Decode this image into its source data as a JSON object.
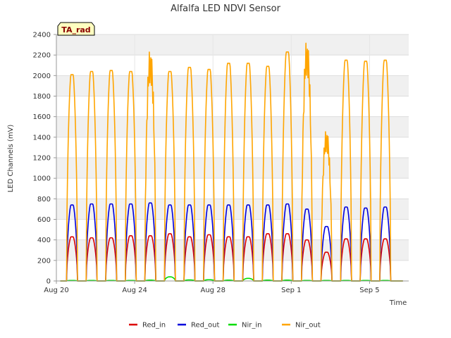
{
  "chart_data": {
    "type": "line",
    "title": "Alfalfa LED NDVI Sensor",
    "xlabel": "Time",
    "ylabel": "LED Channels (mV)",
    "station_badge": "TA_rad",
    "ylim": [
      0,
      2400
    ],
    "yticks": [
      0,
      200,
      400,
      600,
      800,
      1000,
      1200,
      1400,
      1600,
      1800,
      2000,
      2200,
      2400
    ],
    "xlim_day": [
      0,
      18
    ],
    "xticks": [
      {
        "day": 0,
        "label": "Aug 20"
      },
      {
        "day": 4,
        "label": "Aug 24"
      },
      {
        "day": 8,
        "label": "Aug 28"
      },
      {
        "day": 12,
        "label": "Sep 1"
      },
      {
        "day": 16,
        "label": "Sep 5"
      }
    ],
    "day_centers": [
      0.8,
      1.8,
      2.8,
      3.8,
      4.8,
      5.8,
      6.8,
      7.8,
      8.8,
      9.8,
      10.8,
      11.8,
      12.8,
      13.8,
      14.8,
      15.8,
      16.8
    ],
    "series": [
      {
        "name": "Red_in",
        "color": "#dd0000",
        "daily_peaks": [
          430,
          420,
          420,
          440,
          440,
          460,
          430,
          450,
          430,
          430,
          460,
          460,
          400,
          280,
          410,
          410,
          410
        ]
      },
      {
        "name": "Red_out",
        "color": "#0000dd",
        "daily_peaks": [
          740,
          750,
          750,
          750,
          760,
          740,
          740,
          740,
          740,
          740,
          740,
          750,
          700,
          530,
          720,
          710,
          720
        ]
      },
      {
        "name": "Nir_in",
        "color": "#00dd00",
        "daily_peaks": [
          5,
          5,
          5,
          5,
          8,
          40,
          10,
          12,
          8,
          25,
          8,
          8,
          5,
          5,
          5,
          5,
          5
        ]
      },
      {
        "name": "Nir_out",
        "color": "#ffa500",
        "daily_peaks": [
          2010,
          2040,
          2050,
          2040,
          2070,
          2040,
          2080,
          2060,
          2120,
          2120,
          2090,
          2230,
          2150,
          1350,
          2150,
          2140,
          2150
        ]
      }
    ],
    "grid": true,
    "legend_position": "bottom"
  }
}
